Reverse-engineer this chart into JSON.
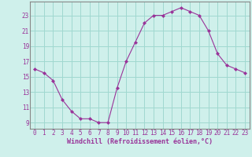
{
  "x": [
    0,
    1,
    2,
    3,
    4,
    5,
    6,
    7,
    8,
    9,
    10,
    11,
    12,
    13,
    14,
    15,
    16,
    17,
    18,
    19,
    20,
    21,
    22,
    23
  ],
  "y": [
    16,
    15.5,
    14.5,
    12,
    10.5,
    9.5,
    9.5,
    9,
    9,
    13.5,
    17,
    19.5,
    22,
    23,
    23,
    23.5,
    24,
    23.5,
    23,
    21,
    18,
    16.5,
    16,
    15.5
  ],
  "line_color": "#993399",
  "marker": "D",
  "marker_size": 2.0,
  "bg_color": "#cff0eb",
  "grid_color": "#a0d8d0",
  "xlabel": "Windchill (Refroidissement éolien,°C)",
  "xlabel_fontsize": 6.0,
  "ytick_labels": [
    "9",
    "11",
    "13",
    "15",
    "17",
    "19",
    "21",
    "23"
  ],
  "ytick_values": [
    9,
    11,
    13,
    15,
    17,
    19,
    21,
    23
  ],
  "ylim": [
    8.2,
    24.8
  ],
  "xlim": [
    -0.5,
    23.5
  ],
  "xtick_values": [
    0,
    1,
    2,
    3,
    4,
    5,
    6,
    7,
    8,
    9,
    10,
    11,
    12,
    13,
    14,
    15,
    16,
    17,
    18,
    19,
    20,
    21,
    22,
    23
  ],
  "tick_fontsize": 5.5,
  "spine_color": "#888888"
}
